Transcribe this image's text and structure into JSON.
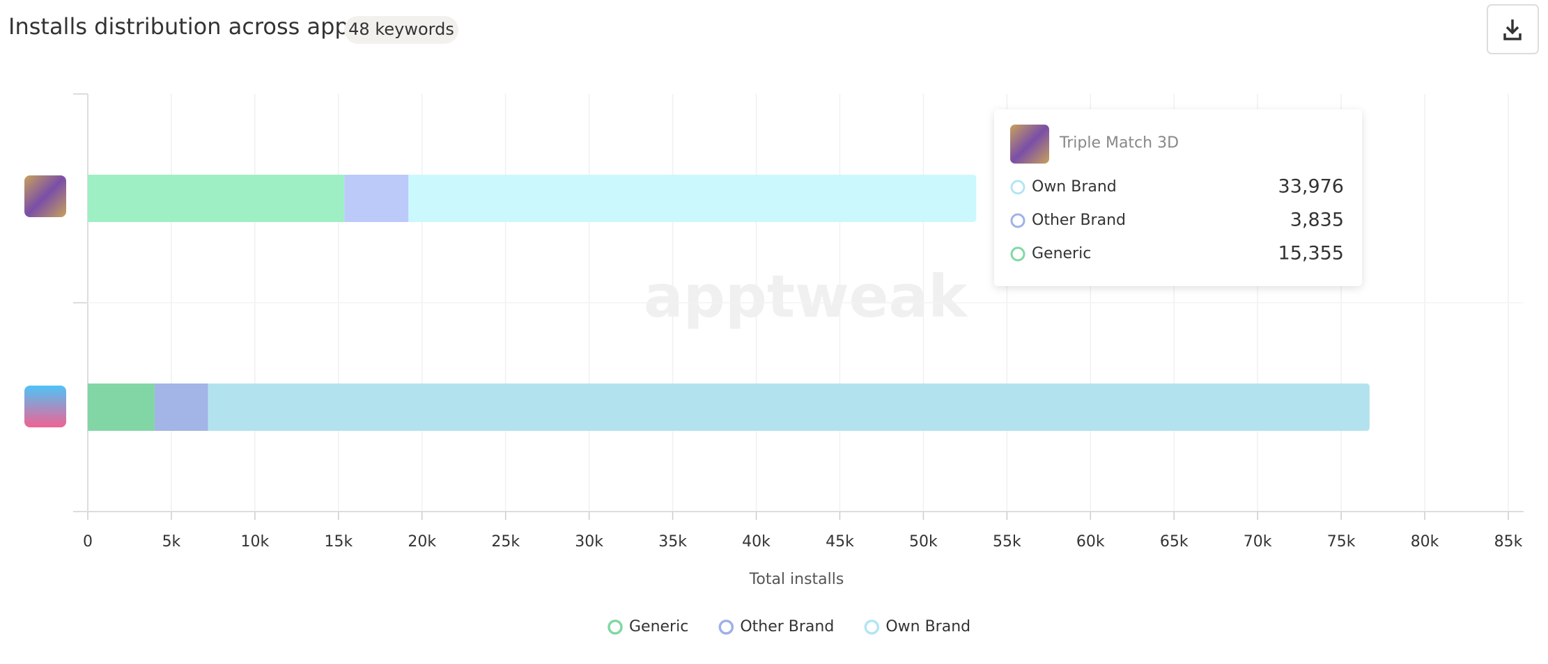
{
  "chart_data": {
    "type": "hbar-stacked",
    "title": "Installs distribution across apps",
    "badge": "48 keywords",
    "watermark": "apptweak",
    "x_label": "Total installs",
    "categories": [
      null,
      null
    ],
    "series": [
      {
        "name": "Generic",
        "color": "#7fd9a4",
        "colors": [
          "#9ef0c4",
          "#82d6a6"
        ],
        "values": [
          15355,
          4000
        ],
        "value_labels": [
          "15,355",
          null
        ]
      },
      {
        "name": "Other Brand",
        "color": "#9fb1e8",
        "colors": [
          "#bccafa",
          "#a3b4e6"
        ],
        "values": [
          3835,
          3200
        ],
        "value_labels": [
          "3,835",
          null
        ]
      },
      {
        "name": "Own Brand",
        "color": "#b3e5f3",
        "colors": [
          "#cbf8fd",
          "#b3e2ef"
        ],
        "values": [
          33976,
          69500
        ],
        "value_labels": [
          "33,976",
          null
        ]
      }
    ],
    "xlim": [
      0,
      85000
    ],
    "xticks": [
      0,
      {
        "value": 5000,
        "label": "5k"
      },
      {
        "value": 10000,
        "label": "10k"
      },
      {
        "value": 15000,
        "label": "15k"
      },
      {
        "value": 20000,
        "label": "20k"
      },
      {
        "value": 25000,
        "label": "25k"
      },
      {
        "value": 30000,
        "label": "30k"
      },
      {
        "value": 35000,
        "label": "35k"
      },
      {
        "value": 40000,
        "label": "40k"
      },
      {
        "value": 45000,
        "label": "45k"
      },
      {
        "value": 50000,
        "label": "50k"
      },
      {
        "value": 55000,
        "label": "55k"
      },
      {
        "value": 60000,
        "label": "60k"
      },
      {
        "value": 65000,
        "label": "65k"
      },
      {
        "value": 70000,
        "label": "70k"
      },
      {
        "value": 75000,
        "label": "75k"
      },
      {
        "value": 80000,
        "label": "80k"
      },
      {
        "value": 85000,
        "label": "85k"
      }
    ],
    "grid": true,
    "legend": "bottom",
    "tooltip": {
      "title": "Triple Match 3D",
      "category": 0,
      "order": [
        2,
        1,
        0
      ]
    }
  }
}
